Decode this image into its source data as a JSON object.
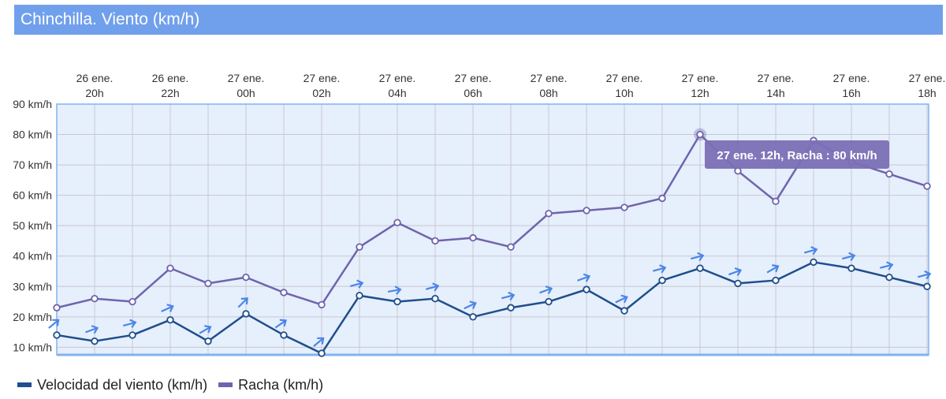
{
  "title": "Chinchilla. Viento (km/h)",
  "colors": {
    "title_bg": "#70a0ec",
    "plot_bg": "#e6effc",
    "plot_border": "#80b3f0",
    "grid": "#c8c8d0",
    "wind": "#1f4e8c",
    "gust": "#6f64ad",
    "arrow": "#4a86e8",
    "tooltip_bg": "#7a6fb5"
  },
  "tooltip": {
    "text": "27 ene. 12h, Racha : 80 km/h"
  },
  "chart_data": {
    "type": "line",
    "x_top": [
      "26 ene.",
      "26 ene.",
      "27 ene.",
      "27 ene.",
      "27 ene.",
      "27 ene.",
      "27 ene.",
      "27 ene.",
      "27 ene.",
      "27 ene.",
      "27 ene.",
      "27 ene."
    ],
    "x_bottom": [
      "20h",
      "22h",
      "00h",
      "02h",
      "04h",
      "06h",
      "08h",
      "10h",
      "12h",
      "14h",
      "16h",
      "18h"
    ],
    "y_ticks": [
      "90 km/h",
      "80 km/h",
      "70 km/h",
      "60 km/h",
      "50 km/h",
      "40 km/h",
      "30 km/h",
      "20 km/h",
      "10 km/h"
    ],
    "ylim": [
      7.5,
      90
    ],
    "series": [
      {
        "name": "Velocidad del viento (km/h)",
        "values": [
          14,
          12,
          14,
          19,
          12,
          21,
          14,
          8,
          27,
          25,
          26,
          20,
          23,
          25,
          29,
          22,
          32,
          36,
          31,
          32,
          38,
          36,
          33,
          30
        ]
      },
      {
        "name": "Racha (km/h)",
        "values": [
          23,
          26,
          25,
          36,
          31,
          33,
          28,
          24,
          43,
          51,
          45,
          46,
          43,
          54,
          55,
          56,
          59,
          80,
          68,
          58,
          78,
          71,
          67,
          63
        ]
      }
    ],
    "direction_arrows_deg": [
      -40,
      -20,
      -15,
      -25,
      -30,
      -45,
      -35,
      -40,
      -15,
      -10,
      -15,
      -25,
      -15,
      -20,
      -20,
      -25,
      -15,
      -15,
      -20,
      -30,
      -15,
      -15,
      -15,
      -15
    ],
    "grid": true,
    "legend": "bottom-left"
  }
}
